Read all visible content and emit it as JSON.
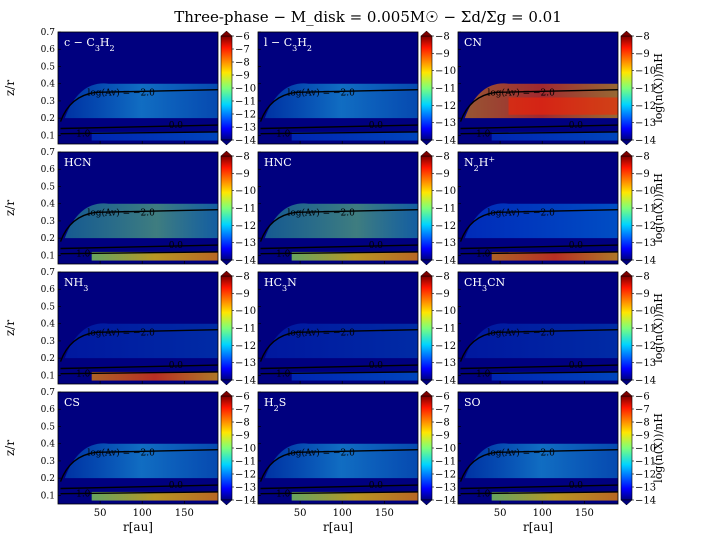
{
  "title": "Three-phase − M_disk = 0.005M☉ − Σd/Σg = 0.01",
  "chart_data": {
    "type": "heatmap",
    "title": "Three-phase − M_disk = 0.005M☉ − Σd/Σg = 0.01",
    "xlabel": "r[au]",
    "ylabel": "z/r",
    "colorbar_label": "log(n(X))/nH",
    "xlim": [
      0,
      190
    ],
    "ylim": [
      0.05,
      0.7
    ],
    "x_ticks": [
      50,
      100,
      150
    ],
    "y_ticks": [
      0.1,
      0.2,
      0.3,
      0.4,
      0.5,
      0.6,
      0.7
    ],
    "contour_labels": {
      "upper": "log(Av) = −2.0",
      "middle": "0.0",
      "lower": "1.0"
    },
    "panels": [
      {
        "label": "c − C3H2",
        "clim": [
          -14,
          -6
        ],
        "cticks": [
          -6,
          -7,
          -8,
          -9,
          -10,
          -11,
          -12,
          -13,
          -14
        ]
      },
      {
        "label": "l − C3H2",
        "clim": [
          -14,
          -8
        ],
        "cticks": [
          -8,
          -9,
          -10,
          -11,
          -12,
          -13,
          -14
        ]
      },
      {
        "label": "CN",
        "clim": [
          -14,
          -8
        ],
        "cticks": [
          -8,
          -9,
          -10,
          -11,
          -12,
          -13,
          -14
        ]
      },
      {
        "label": "HCN",
        "clim": [
          -14,
          -8
        ],
        "cticks": [
          -8,
          -9,
          -10,
          -11,
          -12,
          -13,
          -14
        ]
      },
      {
        "label": "HNC",
        "clim": [
          -14,
          -8
        ],
        "cticks": [
          -8,
          -9,
          -10,
          -11,
          -12,
          -13,
          -14
        ]
      },
      {
        "label": "N2H+",
        "clim": [
          -14,
          -8
        ],
        "cticks": [
          -8,
          -9,
          -10,
          -11,
          -12,
          -13,
          -14
        ]
      },
      {
        "label": "NH3",
        "clim": [
          -14,
          -8
        ],
        "cticks": [
          -8,
          -9,
          -10,
          -11,
          -12,
          -13,
          -14
        ]
      },
      {
        "label": "HC3N",
        "clim": [
          -14,
          -8
        ],
        "cticks": [
          -8,
          -9,
          -10,
          -11,
          -12,
          -13,
          -14
        ]
      },
      {
        "label": "CH3CN",
        "clim": [
          -14,
          -8
        ],
        "cticks": [
          -8,
          -9,
          -10,
          -11,
          -12,
          -13,
          -14
        ]
      },
      {
        "label": "CS",
        "clim": [
          -14,
          -6
        ],
        "cticks": [
          -6,
          -7,
          -8,
          -9,
          -10,
          -11,
          -12,
          -13,
          -14
        ]
      },
      {
        "label": "H2S",
        "clim": [
          -14,
          -6
        ],
        "cticks": [
          -6,
          -7,
          -8,
          -9,
          -10,
          -11,
          -12,
          -13,
          -14
        ]
      },
      {
        "label": "SO",
        "clim": [
          -14,
          -6
        ],
        "cticks": [
          -6,
          -7,
          -8,
          -9,
          -10,
          -11,
          -12,
          -13,
          -14
        ]
      }
    ]
  }
}
